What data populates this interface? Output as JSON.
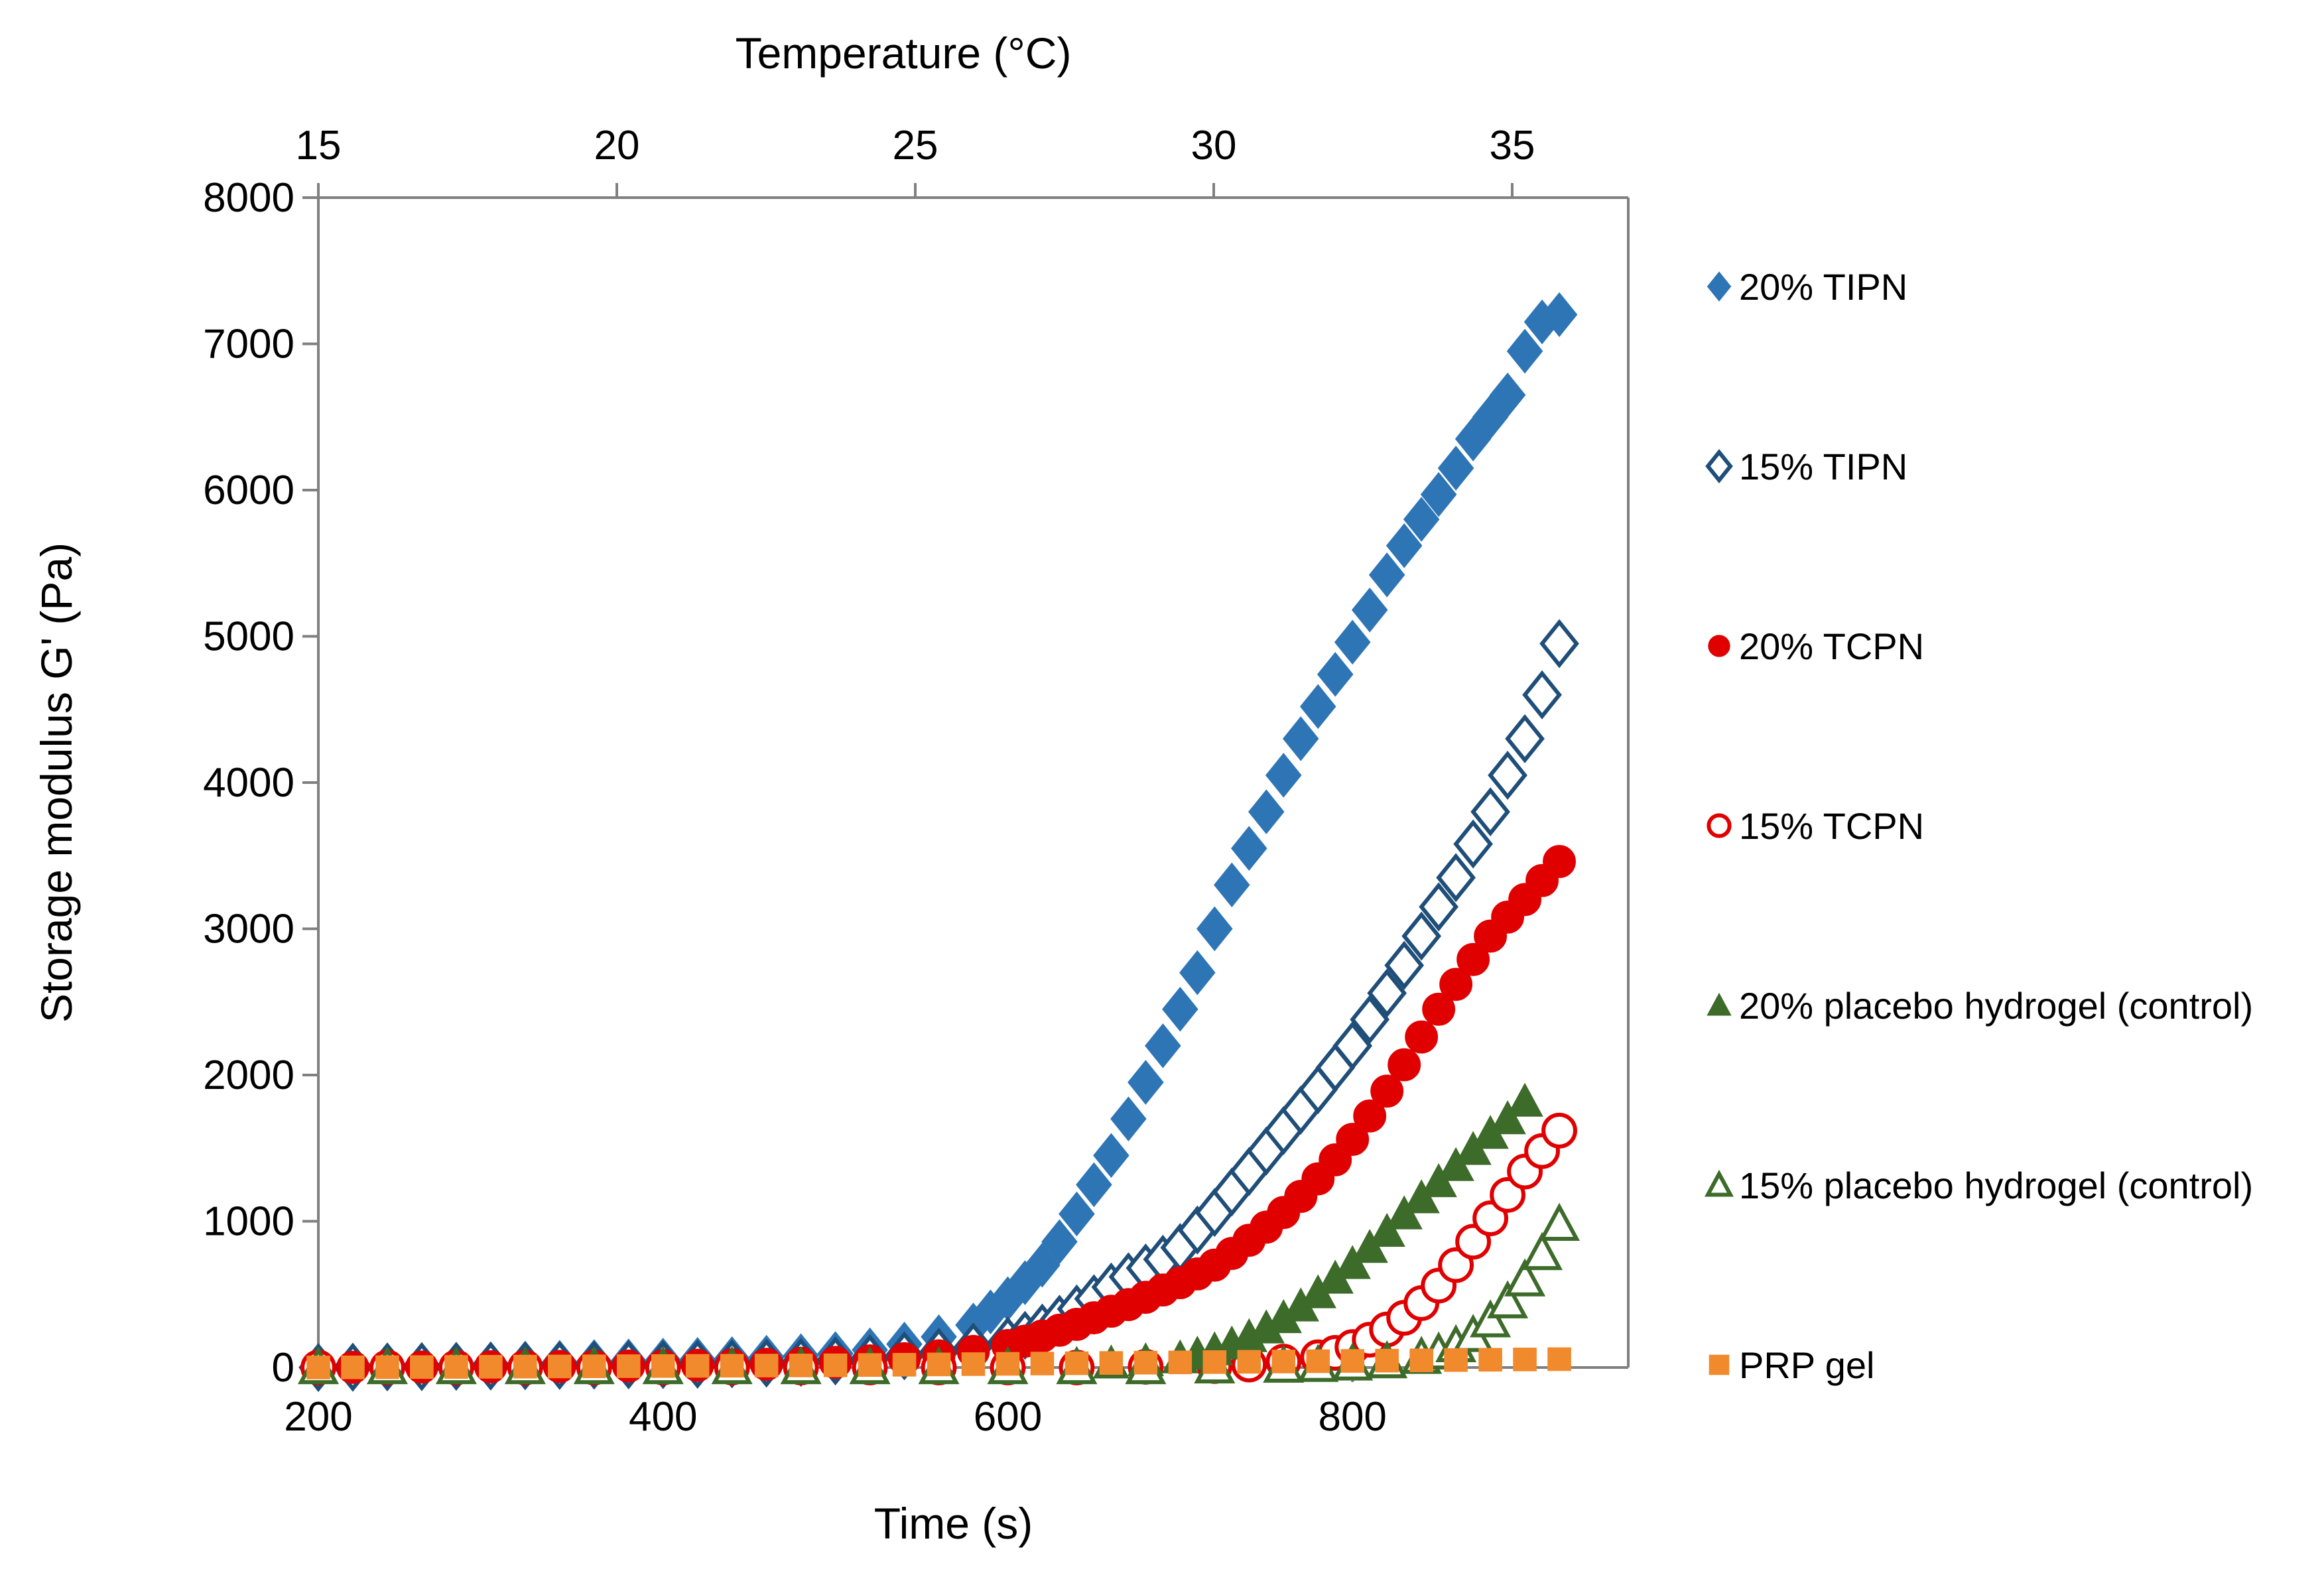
{
  "chart_data": {
    "type": "scatter",
    "title": "",
    "xlabel": "Time (s)",
    "ylabel": "Storage modulus G' (Pa)",
    "x2label": "Temperature (°C)",
    "xlim": [
      200,
      960
    ],
    "ylim": [
      0,
      8000
    ],
    "x2lim": [
      15,
      37
    ],
    "xticks": [
      200,
      400,
      600,
      800
    ],
    "yticks": [
      0,
      1000,
      2000,
      3000,
      4000,
      5000,
      6000,
      7000,
      8000
    ],
    "x2ticks": [
      15,
      20,
      25,
      30,
      35
    ],
    "grid": false,
    "legend_position": "right",
    "series": [
      {
        "name": "20% TIPN",
        "marker": "diamond-filled",
        "color": "#2e75b6",
        "x": [
          200,
          220,
          240,
          260,
          280,
          300,
          320,
          340,
          360,
          380,
          400,
          420,
          440,
          460,
          480,
          500,
          520,
          540,
          560,
          580,
          590,
          600,
          610,
          620,
          630,
          640,
          650,
          660,
          670,
          680,
          690,
          700,
          710,
          720,
          730,
          740,
          750,
          760,
          770,
          780,
          790,
          800,
          810,
          820,
          830,
          840,
          850,
          860,
          870,
          880,
          890,
          900,
          910,
          920
        ],
        "y": [
          0,
          5,
          10,
          15,
          20,
          25,
          30,
          35,
          40,
          45,
          50,
          55,
          60,
          70,
          80,
          95,
          120,
          160,
          210,
          290,
          380,
          470,
          580,
          700,
          860,
          1050,
          1250,
          1450,
          1700,
          1950,
          2200,
          2450,
          2700,
          3000,
          3300,
          3550,
          3800,
          4050,
          4300,
          4520,
          4740,
          4960,
          5180,
          5420,
          5620,
          5800,
          5970,
          6150,
          6350,
          6500,
          6650,
          6950,
          7150,
          7200
        ]
      },
      {
        "name": "15% TIPN",
        "marker": "diamond-open",
        "color": "#1f4e79",
        "x": [
          200,
          220,
          240,
          260,
          280,
          300,
          320,
          340,
          360,
          380,
          400,
          420,
          440,
          460,
          480,
          500,
          520,
          540,
          560,
          580,
          600,
          610,
          620,
          630,
          640,
          650,
          660,
          670,
          680,
          690,
          700,
          710,
          720,
          730,
          740,
          750,
          760,
          770,
          780,
          790,
          800,
          810,
          820,
          830,
          840,
          850,
          860,
          870,
          880,
          890,
          900,
          910,
          920
        ],
        "y": [
          0,
          2,
          4,
          6,
          8,
          10,
          12,
          14,
          16,
          18,
          20,
          22,
          25,
          30,
          35,
          45,
          60,
          80,
          105,
          140,
          180,
          220,
          270,
          330,
          400,
          470,
          550,
          620,
          680,
          740,
          820,
          940,
          1060,
          1200,
          1340,
          1480,
          1620,
          1760,
          1900,
          2050,
          2200,
          2380,
          2560,
          2750,
          2950,
          3150,
          3350,
          3580,
          3800,
          4050,
          4300,
          4600,
          4950
        ]
      },
      {
        "name": "20% TCPN",
        "marker": "circle-filled",
        "color": "#e00000",
        "x": [
          200,
          220,
          240,
          260,
          280,
          300,
          320,
          340,
          360,
          380,
          400,
          420,
          440,
          460,
          480,
          500,
          520,
          540,
          560,
          580,
          600,
          610,
          620,
          630,
          640,
          650,
          660,
          670,
          680,
          690,
          700,
          710,
          720,
          730,
          740,
          750,
          760,
          770,
          780,
          790,
          800,
          810,
          820,
          830,
          840,
          850,
          860,
          870,
          880,
          890,
          900,
          910,
          920
        ],
        "y": [
          0,
          1,
          2,
          3,
          4,
          5,
          6,
          7,
          8,
          10,
          12,
          15,
          18,
          22,
          28,
          35,
          45,
          60,
          80,
          110,
          150,
          180,
          215,
          255,
          295,
          340,
          385,
          430,
          480,
          530,
          580,
          640,
          700,
          780,
          870,
          960,
          1060,
          1170,
          1290,
          1420,
          1560,
          1720,
          1890,
          2070,
          2260,
          2450,
          2620,
          2790,
          2950,
          3080,
          3200,
          3330,
          3460
        ]
      },
      {
        "name": "15% TCPN",
        "marker": "circle-open",
        "color": "#e00000",
        "x": [
          200,
          240,
          280,
          320,
          360,
          400,
          440,
          480,
          520,
          560,
          600,
          640,
          680,
          720,
          740,
          760,
          780,
          790,
          800,
          810,
          820,
          830,
          840,
          850,
          860,
          870,
          880,
          890,
          900,
          910,
          920
        ],
        "y": [
          0,
          0,
          0,
          0,
          0,
          0,
          0,
          0,
          0,
          0,
          0,
          0,
          5,
          10,
          20,
          40,
          70,
          100,
          140,
          190,
          260,
          340,
          440,
          560,
          700,
          860,
          1020,
          1180,
          1340,
          1480,
          1620
        ]
      },
      {
        "name": "20% placebo hydrogel (control)",
        "marker": "triangle-filled",
        "color": "#3d6b2a",
        "x": [
          200,
          240,
          280,
          320,
          360,
          400,
          440,
          480,
          520,
          560,
          600,
          640,
          660,
          680,
          700,
          710,
          720,
          730,
          740,
          750,
          760,
          770,
          780,
          790,
          800,
          810,
          820,
          830,
          840,
          850,
          860,
          870,
          880,
          890,
          900
        ],
        "y": [
          0,
          0,
          0,
          0,
          0,
          0,
          0,
          0,
          0,
          5,
          10,
          20,
          30,
          45,
          65,
          90,
          120,
          160,
          210,
          270,
          340,
          420,
          510,
          610,
          710,
          820,
          930,
          1050,
          1160,
          1270,
          1380,
          1490,
          1600,
          1700,
          1820
        ]
      },
      {
        "name": "15% placebo hydrogel (control)",
        "marker": "triangle-open",
        "color": "#3d6b2a",
        "x": [
          200,
          240,
          280,
          320,
          360,
          400,
          440,
          480,
          520,
          560,
          600,
          640,
          680,
          720,
          760,
          780,
          800,
          820,
          840,
          850,
          860,
          870,
          880,
          890,
          900,
          910,
          920
        ],
        "y": [
          0,
          0,
          0,
          0,
          0,
          0,
          0,
          0,
          0,
          0,
          0,
          0,
          0,
          5,
          10,
          15,
          25,
          40,
          70,
          100,
          150,
          220,
          320,
          450,
          600,
          780,
          980
        ]
      },
      {
        "name": "PRP gel",
        "marker": "square-filled",
        "color": "#f08a2c",
        "x": [
          200,
          220,
          240,
          260,
          280,
          300,
          320,
          340,
          360,
          380,
          400,
          420,
          440,
          460,
          480,
          500,
          520,
          540,
          560,
          580,
          600,
          620,
          640,
          660,
          680,
          700,
          720,
          740,
          760,
          780,
          800,
          820,
          840,
          860,
          880,
          900,
          920
        ],
        "y": [
          0,
          1,
          2,
          3,
          4,
          5,
          6,
          7,
          8,
          9,
          10,
          11,
          12,
          13,
          14,
          15,
          17,
          19,
          21,
          23,
          25,
          27,
          29,
          31,
          33,
          35,
          37,
          39,
          41,
          43,
          45,
          47,
          49,
          51,
          53,
          55,
          57
        ]
      }
    ]
  }
}
